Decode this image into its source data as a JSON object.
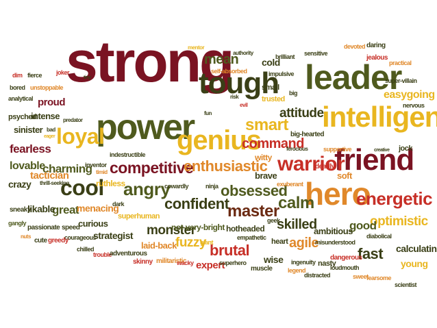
{
  "colors": {
    "maroon": "#8a1020",
    "dark_red": "#7a1322",
    "red": "#c72f27",
    "orange": "#e0882a",
    "yellow": "#e9b620",
    "olive": "#4f5a1e",
    "dark_olive": "#3a3f16",
    "brown": "#6b2a12"
  },
  "words": [
    "strong",
    "tough",
    "power",
    "genius",
    "leader",
    "intelligent",
    "friend",
    "warrior",
    "hero",
    "cool",
    "loyal",
    "confident",
    "angry",
    "competitive",
    "enthusiastic",
    "obsessed",
    "master",
    "calm",
    "energetic",
    "optimistic",
    "smart",
    "command",
    "mean",
    "attitude",
    "skilled",
    "monster",
    "brutal",
    "agile",
    "fast",
    "good",
    "charming",
    "fearless",
    "lovable",
    "tactician",
    "crazy",
    "great",
    "curious",
    "strategist",
    "fuzzy",
    "expert",
    "wise",
    "calculating",
    "young",
    "sinister",
    "intense",
    "proud",
    "psyched",
    "analytical",
    "bored",
    "dim",
    "fierce",
    "joker",
    "unstoppable",
    "predator",
    "likable",
    "sneaky",
    "gangly",
    "nuts",
    "passionate",
    "speed",
    "courageous",
    "cute",
    "greedy",
    "chilled",
    "trouble",
    "adventurous",
    "skinny",
    "militaristic",
    "wacky",
    "superhero",
    "muscle",
    "legend",
    "ingenuity",
    "nasty",
    "distracted",
    "loudmouth",
    "dangerous",
    "sweet",
    "fearsome",
    "scientist",
    "ambitious",
    "misunderstood",
    "diabolical",
    "heart",
    "empathetic",
    "hotheaded",
    "geek",
    "superhuman",
    "laid-back",
    "not-very-bright",
    "giant",
    "menacing",
    "dark",
    "ruthless",
    "cowardly",
    "inventor",
    "timid",
    "ninja",
    "witty",
    "brave",
    "deadly",
    "soft",
    "exuberant",
    "jock",
    "supportive",
    "ferocious",
    "big-hearted",
    "easygoing",
    "nervous",
    "super-villain",
    "practical",
    "jealous",
    "daring",
    "devoted",
    "sensitive",
    "cold",
    "brilliant",
    "impulsive",
    "authority",
    "self-absorbed",
    "mentor",
    "risk",
    "fun",
    "evil",
    "small",
    "trusted",
    "big",
    "indestructible",
    "thrill-seeking",
    "bad",
    "eager",
    "creative",
    "tiny"
  ]
}
